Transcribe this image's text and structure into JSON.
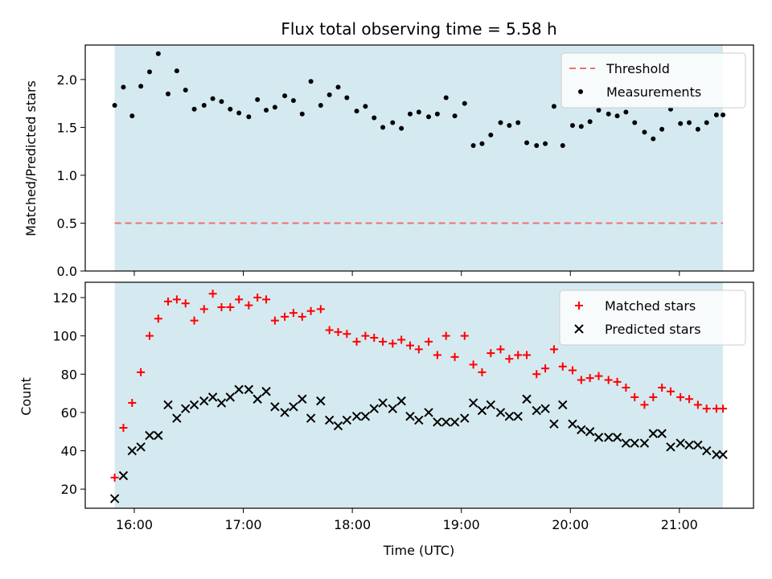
{
  "title": "Flux total observing time = 5.58 h",
  "colors": {
    "shade": "#d5eaf0",
    "threshold": "#f07070",
    "measurement": "#000000",
    "matched": "#ff0000",
    "predicted": "#000000"
  },
  "chart_data": [
    {
      "type": "scatter",
      "ylabel": "Matched/Predicted stars",
      "ylim": [
        0,
        2.36
      ],
      "xlim": [
        15.55,
        21.68
      ],
      "shaded_x": [
        15.82,
        21.4
      ],
      "yticks": [
        0.0,
        0.5,
        1.0,
        1.5,
        2.0
      ],
      "ytick_labels": [
        "0.0",
        "0.5",
        "1.0",
        "1.5",
        "2.0"
      ],
      "threshold": 0.5,
      "legend": {
        "position": "top-right",
        "entries": [
          "Threshold",
          "Measurements"
        ]
      },
      "series": [
        {
          "name": "Measurements",
          "marker": "dot",
          "x": [
            15.82,
            15.9,
            15.98,
            16.06,
            16.14,
            16.22,
            16.31,
            16.39,
            16.47,
            16.55,
            16.64,
            16.72,
            16.8,
            16.88,
            16.96,
            17.05,
            17.13,
            17.21,
            17.29,
            17.38,
            17.46,
            17.54,
            17.62,
            17.71,
            17.79,
            17.87,
            17.95,
            18.04,
            18.12,
            18.2,
            18.28,
            18.37,
            18.45,
            18.53,
            18.61,
            18.7,
            18.78,
            18.86,
            18.94,
            19.03,
            19.11,
            19.19,
            19.27,
            19.36,
            19.44,
            19.52,
            19.6,
            19.69,
            19.77,
            19.85,
            19.93,
            20.02,
            20.1,
            20.18,
            20.26,
            20.35,
            20.43,
            20.51,
            20.59,
            20.68,
            20.76,
            20.84,
            20.92,
            21.01,
            21.09,
            21.17,
            21.25,
            21.34,
            21.4
          ],
          "y": [
            1.73,
            1.92,
            1.62,
            1.93,
            2.08,
            2.27,
            1.85,
            2.09,
            1.89,
            1.69,
            1.73,
            1.8,
            1.77,
            1.69,
            1.65,
            1.61,
            1.79,
            1.68,
            1.71,
            1.83,
            1.78,
            1.64,
            1.98,
            1.73,
            1.84,
            1.92,
            1.81,
            1.67,
            1.72,
            1.6,
            1.5,
            1.55,
            1.49,
            1.64,
            1.66,
            1.61,
            1.64,
            1.81,
            1.62,
            1.75,
            1.31,
            1.33,
            1.42,
            1.55,
            1.52,
            1.55,
            1.34,
            1.31,
            1.33,
            1.72,
            1.31,
            1.52,
            1.51,
            1.56,
            1.68,
            1.64,
            1.62,
            1.66,
            1.55,
            1.45,
            1.38,
            1.48,
            1.69,
            1.54,
            1.55,
            1.48,
            1.55,
            1.63,
            1.63
          ]
        }
      ]
    },
    {
      "type": "scatter",
      "xlabel": "Time (UTC)",
      "ylabel": "Count",
      "ylim": [
        10,
        128
      ],
      "xlim": [
        15.55,
        21.68
      ],
      "shaded_x": [
        15.82,
        21.4
      ],
      "yticks": [
        20,
        40,
        60,
        80,
        100,
        120
      ],
      "ytick_labels": [
        "20",
        "40",
        "60",
        "80",
        "100",
        "120"
      ],
      "xticks": [
        16,
        17,
        18,
        19,
        20,
        21
      ],
      "xtick_labels": [
        "16:00",
        "17:00",
        "18:00",
        "19:00",
        "20:00",
        "21:00"
      ],
      "legend": {
        "position": "top-right",
        "entries": [
          "Matched stars",
          "Predicted stars"
        ]
      },
      "series": [
        {
          "name": "Matched stars",
          "marker": "plus",
          "x": [
            15.82,
            15.9,
            15.98,
            16.06,
            16.14,
            16.22,
            16.31,
            16.39,
            16.47,
            16.55,
            16.64,
            16.72,
            16.8,
            16.88,
            16.96,
            17.05,
            17.13,
            17.21,
            17.29,
            17.38,
            17.46,
            17.54,
            17.62,
            17.71,
            17.79,
            17.87,
            17.95,
            18.04,
            18.12,
            18.2,
            18.28,
            18.37,
            18.45,
            18.53,
            18.61,
            18.7,
            18.78,
            18.86,
            18.94,
            19.03,
            19.11,
            19.19,
            19.27,
            19.36,
            19.44,
            19.52,
            19.6,
            19.69,
            19.77,
            19.85,
            19.93,
            20.02,
            20.1,
            20.18,
            20.26,
            20.35,
            20.43,
            20.51,
            20.59,
            20.68,
            20.76,
            20.84,
            20.92,
            21.01,
            21.09,
            21.17,
            21.25,
            21.34,
            21.4
          ],
          "y": [
            26,
            52,
            65,
            81,
            100,
            109,
            118,
            119,
            117,
            108,
            114,
            122,
            115,
            115,
            119,
            116,
            120,
            119,
            108,
            110,
            112,
            110,
            113,
            114,
            103,
            102,
            101,
            97,
            100,
            99,
            97,
            96,
            98,
            95,
            93,
            97,
            90,
            100,
            89,
            100,
            85,
            81,
            91,
            93,
            88,
            90,
            90,
            80,
            83,
            93,
            84,
            82,
            77,
            78,
            79,
            77,
            76,
            73,
            68,
            64,
            68,
            73,
            71,
            68,
            67,
            64,
            62,
            62,
            62
          ]
        },
        {
          "name": "Predicted stars",
          "marker": "x",
          "x": [
            15.82,
            15.9,
            15.98,
            16.06,
            16.14,
            16.22,
            16.31,
            16.39,
            16.47,
            16.55,
            16.64,
            16.72,
            16.8,
            16.88,
            16.96,
            17.05,
            17.13,
            17.21,
            17.29,
            17.38,
            17.46,
            17.54,
            17.62,
            17.71,
            17.79,
            17.87,
            17.95,
            18.04,
            18.12,
            18.2,
            18.28,
            18.37,
            18.45,
            18.53,
            18.61,
            18.7,
            18.78,
            18.86,
            18.94,
            19.03,
            19.11,
            19.19,
            19.27,
            19.36,
            19.44,
            19.52,
            19.6,
            19.69,
            19.77,
            19.85,
            19.93,
            20.02,
            20.1,
            20.18,
            20.26,
            20.35,
            20.43,
            20.51,
            20.59,
            20.68,
            20.76,
            20.84,
            20.92,
            21.01,
            21.09,
            21.17,
            21.25,
            21.34,
            21.4
          ],
          "y": [
            15,
            27,
            40,
            42,
            48,
            48,
            64,
            57,
            62,
            64,
            66,
            68,
            65,
            68,
            72,
            72,
            67,
            71,
            63,
            60,
            63,
            67,
            57,
            66,
            56,
            53,
            56,
            58,
            58,
            62,
            65,
            62,
            66,
            58,
            56,
            60,
            55,
            55,
            55,
            57,
            65,
            61,
            64,
            60,
            58,
            58,
            67,
            61,
            62,
            54,
            64,
            54,
            51,
            50,
            47,
            47,
            47,
            44,
            44,
            44,
            49,
            49,
            42,
            44,
            43,
            43,
            40,
            38,
            38
          ]
        }
      ]
    }
  ]
}
